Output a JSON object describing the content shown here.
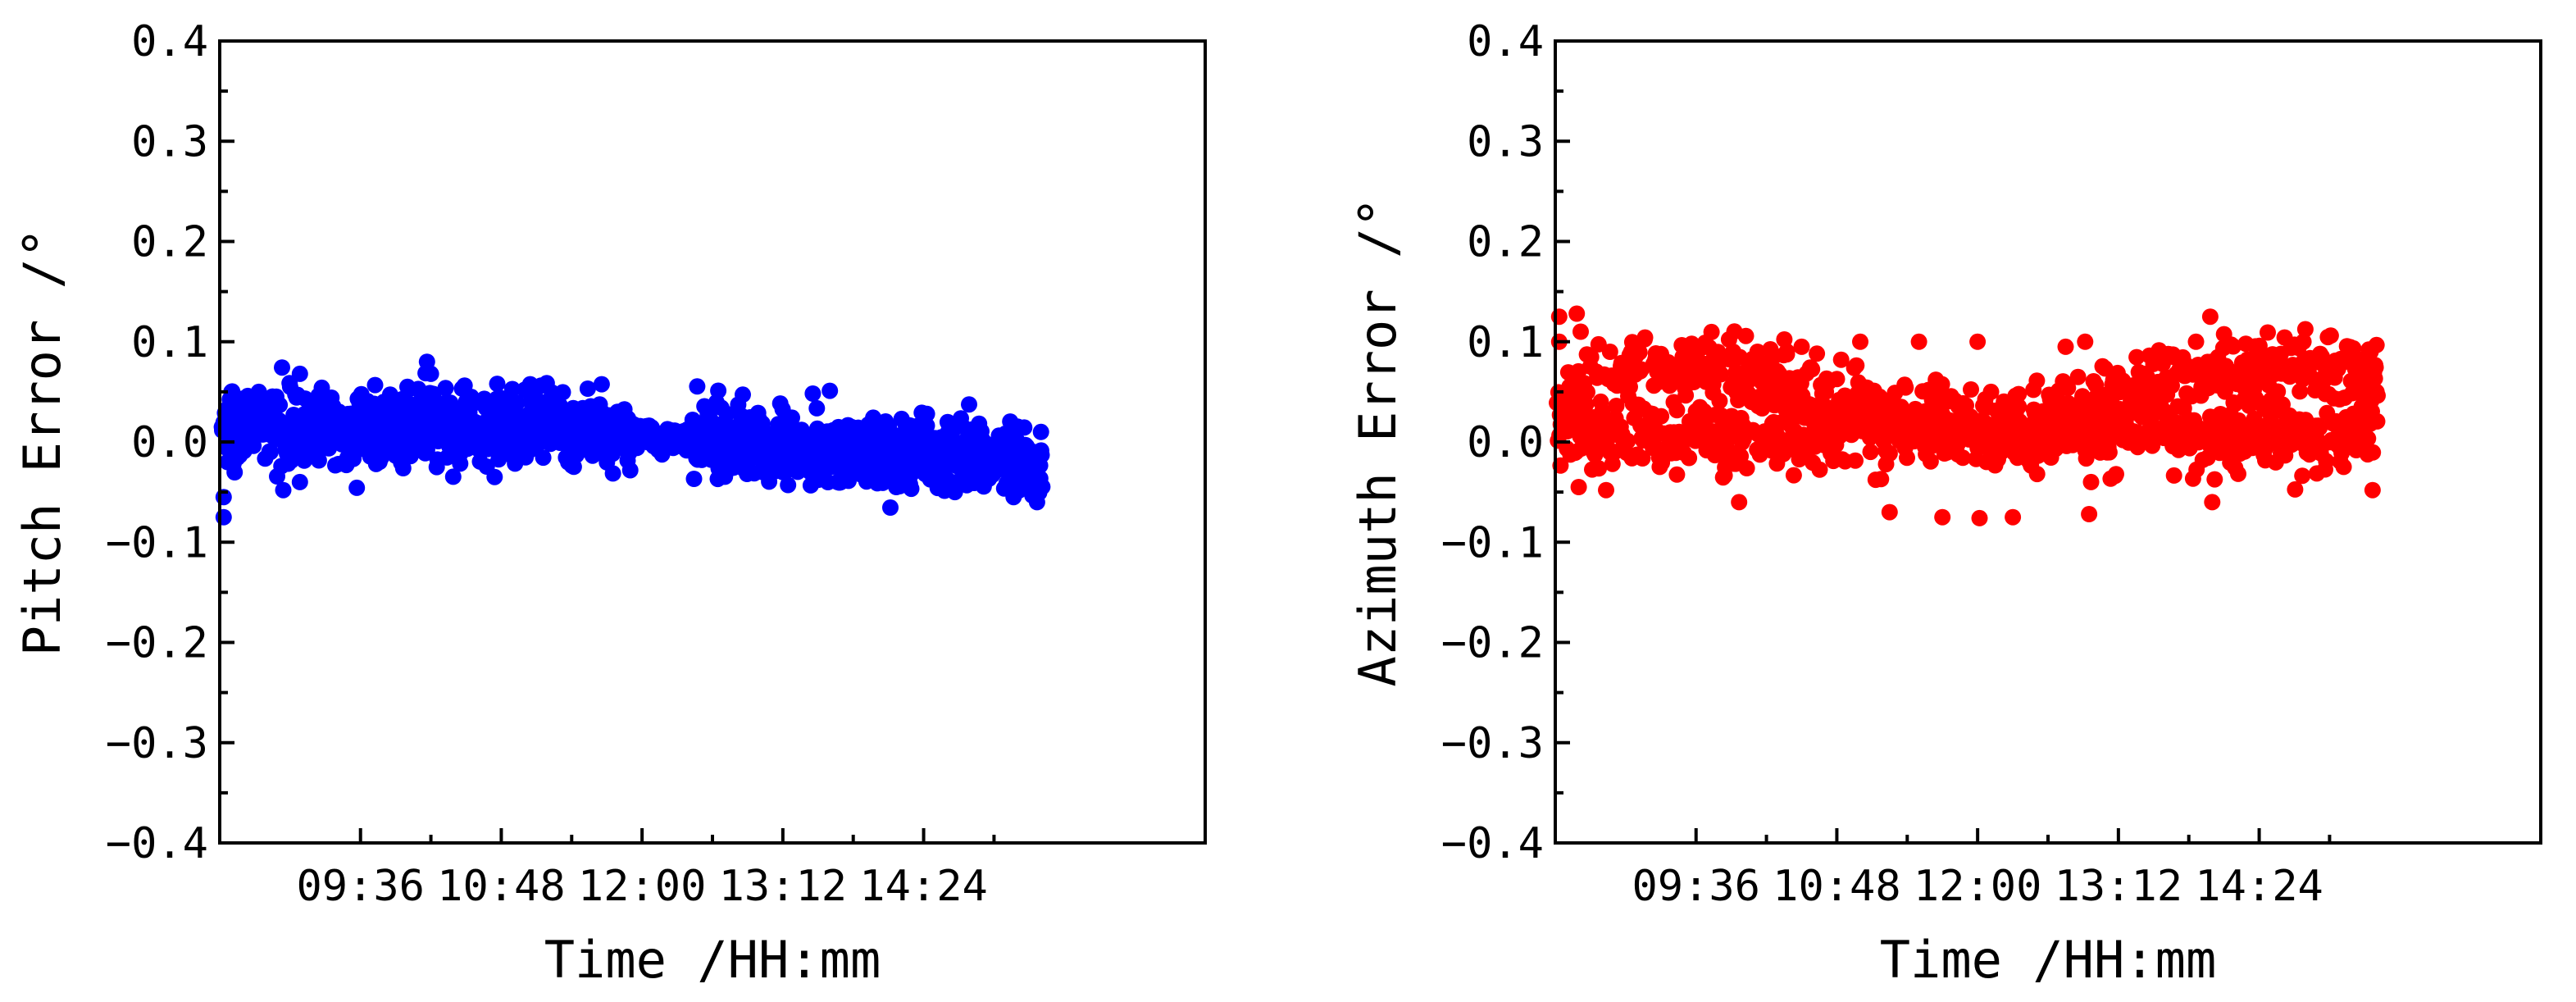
{
  "chart_data": [
    {
      "type": "scatter",
      "title": "",
      "xlabel": "Time /HH:mm",
      "ylabel": "Pitch Error /°",
      "xlim": [
        "08:24",
        "16:48"
      ],
      "ylim": [
        -0.4,
        0.4
      ],
      "x_ticks": [
        "09:36",
        "10:48",
        "12:00",
        "13:12",
        "14:24"
      ],
      "y_ticks": [
        "0.4",
        "0.3",
        "0.2",
        "0.1",
        "0.0",
        "-0.1",
        "-0.2",
        "-0.3",
        "-0.4"
      ],
      "grid": false,
      "legend": "none",
      "color": "#0000ff",
      "series": [
        {
          "values": [
            {
              "x": "08:26",
              "y": -0.055
            },
            {
              "x": "08:26",
              "y": -0.075
            },
            {
              "x": "08:28",
              "y": -0.02
            },
            {
              "x": "08:30",
              "y": 0.05
            },
            {
              "x": "08:32",
              "y": 0.03
            },
            {
              "x": "08:34",
              "y": -0.01
            },
            {
              "x": "08:38",
              "y": 0.04
            },
            {
              "x": "08:44",
              "y": 0.05
            },
            {
              "x": "08:50",
              "y": -0.01
            },
            {
              "x": "09:00",
              "y": 0.055
            },
            {
              "x": "09:05",
              "y": 0.068
            },
            {
              "x": "09:05",
              "y": -0.04
            },
            {
              "x": "09:15",
              "y": 0.035
            },
            {
              "x": "09:25",
              "y": 0.03
            },
            {
              "x": "09:36",
              "y": 0.045
            },
            {
              "x": "09:48",
              "y": 0.04
            },
            {
              "x": "10:00",
              "y": 0.055
            },
            {
              "x": "10:10",
              "y": 0.08
            },
            {
              "x": "10:12",
              "y": 0.068
            },
            {
              "x": "10:15",
              "y": -0.025
            },
            {
              "x": "10:30",
              "y": 0.04
            },
            {
              "x": "10:48",
              "y": 0.035
            },
            {
              "x": "11:00",
              "y": 0.052
            },
            {
              "x": "11:15",
              "y": 0.03
            },
            {
              "x": "11:35",
              "y": 0.025
            },
            {
              "x": "12:00",
              "y": 0.005
            },
            {
              "x": "12:20",
              "y": 0.0
            },
            {
              "x": "12:45",
              "y": -0.02
            },
            {
              "x": "13:12",
              "y": -0.03
            },
            {
              "x": "13:40",
              "y": -0.04
            },
            {
              "x": "14:10",
              "y": -0.045
            },
            {
              "x": "14:40",
              "y": -0.05
            },
            {
              "x": "15:10",
              "y": -0.055
            },
            {
              "x": "15:22",
              "y": -0.06
            },
            {
              "x": "15:24",
              "y": 0.01
            }
          ]
        }
      ]
    },
    {
      "type": "scatter",
      "title": "",
      "xlabel": "Time /HH:mm",
      "ylabel": "Azimuth Error /°",
      "xlim": [
        "08:24",
        "16:48"
      ],
      "ylim": [
        -0.4,
        0.4
      ],
      "x_ticks": [
        "09:36",
        "10:48",
        "12:00",
        "13:12",
        "14:24"
      ],
      "y_ticks": [
        "0.4",
        "0.3",
        "0.2",
        "0.1",
        "0.0",
        "-0.1",
        "-0.2",
        "-0.3",
        "-0.4"
      ],
      "grid": false,
      "legend": "none",
      "color": "#ff0000",
      "series": [
        {
          "values": [
            {
              "x": "08:26",
              "y": 0.125
            },
            {
              "x": "08:26",
              "y": 0.1
            },
            {
              "x": "08:35",
              "y": 0.128
            },
            {
              "x": "08:37",
              "y": 0.11
            },
            {
              "x": "08:36",
              "y": -0.045
            },
            {
              "x": "08:50",
              "y": -0.048
            },
            {
              "x": "08:52",
              "y": 0.09
            },
            {
              "x": "09:55",
              "y": 0.09
            },
            {
              "x": "09:58",
              "y": -0.06
            },
            {
              "x": "10:30",
              "y": 0.095
            },
            {
              "x": "11:00",
              "y": 0.1
            },
            {
              "x": "11:15",
              "y": -0.07
            },
            {
              "x": "11:30",
              "y": 0.1
            },
            {
              "x": "11:42",
              "y": -0.075
            },
            {
              "x": "12:00",
              "y": 0.1
            },
            {
              "x": "12:01",
              "y": -0.076
            },
            {
              "x": "12:18",
              "y": -0.075
            },
            {
              "x": "12:45",
              "y": 0.095
            },
            {
              "x": "12:55",
              "y": 0.1
            },
            {
              "x": "12:58",
              "y": -0.04
            },
            {
              "x": "12:57",
              "y": -0.072
            },
            {
              "x": "13:40",
              "y": 0.085
            },
            {
              "x": "13:59",
              "y": 0.125
            },
            {
              "x": "14:00",
              "y": -0.06
            },
            {
              "x": "14:30",
              "y": 0.08
            },
            {
              "x": "15:10",
              "y": 0.085
            },
            {
              "x": "15:21",
              "y": 0.09
            },
            {
              "x": "15:22",
              "y": -0.048
            },
            {
              "x": "15:24",
              "y": 0.05
            }
          ]
        }
      ]
    }
  ]
}
